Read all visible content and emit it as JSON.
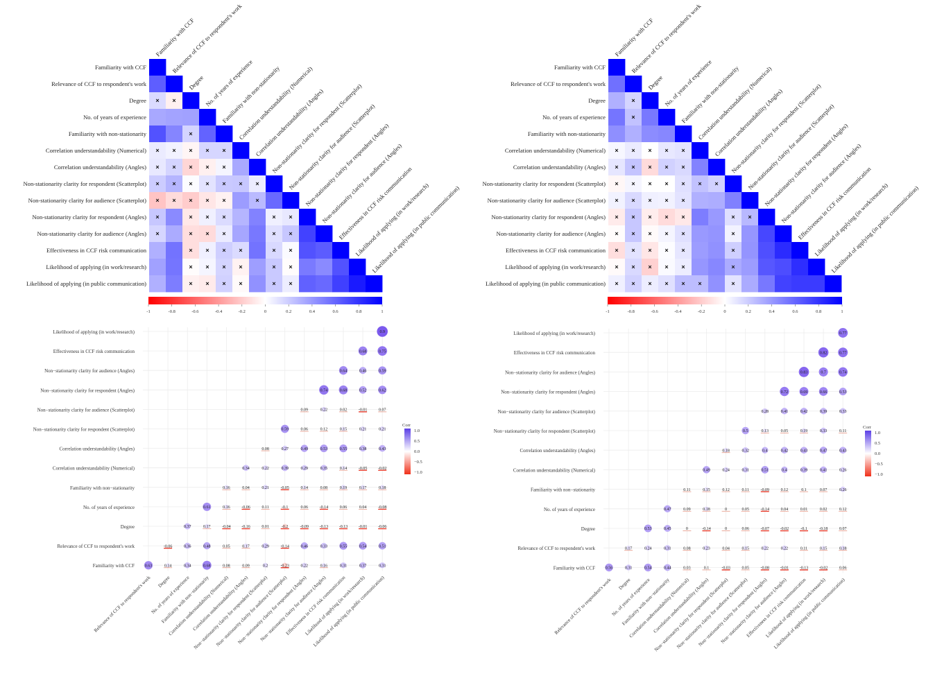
{
  "chart_data": [
    {
      "type": "heatmap",
      "panel": "top-left",
      "variables": [
        "Familiarity with CCF",
        "Relevance of CCF to respondent's work",
        "Degree",
        "No. of years of experience",
        "Familiarity with non-stationarity",
        "Correlation understandability (Numerical)",
        "Correlation understandability (Angles)",
        "Non-stationarity clarity for respondent (Scatterplot)",
        "Non-stationarity clarity for audience (Scatterplot)",
        "Non-stationarity clarity for respondent (Angles)",
        "Non-stationarity clarity for audience (Angles)",
        "Effectiveness in CCF risk communication",
        "Likelihood of applying (in work/research)",
        "Likelihood of applying (in public communication)"
      ],
      "colorbar_ticks": [
        "-1",
        "-0.8",
        "-0.6",
        "-0.4",
        "-0.2",
        "0",
        "0.2",
        "0.4",
        "0.6",
        "0.8",
        "1"
      ],
      "cross_marker": "×",
      "colors": {
        "negative": "#ff0000",
        "zero": "#ffffff",
        "positive": "#0000ff"
      }
    },
    {
      "type": "heatmap",
      "panel": "top-right",
      "variables": [
        "Familiarity with CCF",
        "Relevance of CCF to respondent's work",
        "Degree",
        "No. of years of experience",
        "Familiarity with non-stationarity",
        "Correlation understandability (Numerical)",
        "Correlation understandability (Angles)",
        "Non-stationarity clarity for respondent (Scatterplot)",
        "Non-stationarity clarity for audience (Scatterplot)",
        "Non-stationarity clarity for respondent (Angles)",
        "Non-stationarity clarity for audience (Angles)",
        "Effectiveness in CCF risk communication",
        "Likelihood of applying (in work/research)",
        "Likelihood of applying (in public communication)"
      ],
      "colorbar_ticks": [
        "-1",
        "-0.8",
        "-0.6",
        "-0.4",
        "-0.2",
        "0",
        "0.2",
        "0.4",
        "0.6",
        "0.8",
        "1"
      ],
      "cross_marker": "×",
      "colors": {
        "negative": "#ff0000",
        "zero": "#ffffff",
        "positive": "#0000ff"
      }
    },
    {
      "type": "scatter",
      "panel": "bottom-left",
      "variables": [
        "Familiarity with CCF",
        "Relevance of CCF to respondent's work",
        "Degree",
        "No. of years of experience",
        "Familiarity with non-stationarity",
        "Correlation understandability (Numerical)",
        "Correlation understandability (Angles)",
        "Non-stationarity clarity for respondent (Scatterplot)",
        "Non-stationarity clarity for audience (Scatterplot)",
        "Non-stationarity clarity for respondent (Angles)",
        "Non-stationarity clarity for audience (Angles)",
        "Effectiveness in CCF risk communication",
        "Likelihood of applying (in work/research)",
        "Likelihood of applying (in public communication)"
      ],
      "y_labels": [
        "Familiarity with CCF",
        "Relevance of CCF to respondent's work",
        "Degree",
        "No. of years of experience",
        "Familiarity with non−stationarity",
        "Correlation understandability (Numerical)",
        "Correlation understandability (Angles)",
        "Non−stationarity clarity for respondent (Scatterplot)",
        "Non−stationarity clarity for audience (Scatterplot)",
        "Non−stationarity clarity for respondent (Angles)",
        "Non−stationarity clarity for audience (Angles)",
        "Effectiveness in CCF risk communication",
        "Likelihood of applying (in work/research)"
      ],
      "x_labels": [
        "Relevance of CCF to respondent's work",
        "Degree",
        "No. of years of experience",
        "Familiarity with non−stationarity",
        "Correlation understandability (Numerical)",
        "Correlation understandability (Angles)",
        "Non−stationarity clarity for respondent (Scatterplot)",
        "Non−stationarity clarity for audience (Scatterplot)",
        "Non−stationarity clarity for respondent (Angles)",
        "Non−stationarity clarity for audience (Angles)",
        "Effectiveness in CCF risk communication",
        "Likelihood of applying (in work/research)",
        "Likelihood of applying (in public communication)"
      ],
      "legend_title": "Corr",
      "legend_ticks": [
        "1.0",
        "0.5",
        "0.0",
        "−0.5",
        "−1.0"
      ],
      "values": [
        [
          0.63,
          0.14,
          0.34,
          0.68,
          0.08,
          0.09,
          0.2,
          -0.23,
          0.22,
          0.16,
          0.31,
          0.37,
          0.31
        ],
        [
          null,
          -0.06,
          0.36,
          0.48,
          0.05,
          0.17,
          0.29,
          -0.14,
          0.46,
          0.33,
          0.55,
          0.54,
          0.51
        ],
        [
          null,
          null,
          0.37,
          0.17,
          -0.04,
          -0.16,
          0.01,
          -0.2,
          -0.09,
          -0.13,
          -0.13,
          -0.01,
          -0.06
        ],
        [
          null,
          null,
          null,
          0.61,
          0.16,
          -0.06,
          0.11,
          -0.1,
          0.06,
          -0.14,
          0.06,
          0.04,
          -0.08
        ],
        [
          null,
          null,
          null,
          null,
          0.16,
          0.04,
          0.21,
          -0.05,
          0.14,
          0.08,
          0.19,
          0.17,
          0.18
        ],
        [
          null,
          null,
          null,
          null,
          null,
          0.34,
          0.22,
          0.39,
          0.29,
          0.35,
          0.14,
          -0.05,
          -0.02
        ],
        [
          null,
          null,
          null,
          null,
          null,
          null,
          0.08,
          0.27,
          0.49,
          0.53,
          0.55,
          0.38,
          0.43
        ],
        [
          null,
          null,
          null,
          null,
          null,
          null,
          null,
          0.59,
          0.06,
          0.12,
          0.15,
          0.21,
          0.21
        ],
        [
          null,
          null,
          null,
          null,
          null,
          null,
          null,
          null,
          0.09,
          0.22,
          0.02,
          -0.01,
          0.07
        ],
        [
          null,
          null,
          null,
          null,
          null,
          null,
          null,
          null,
          null,
          0.74,
          0.68,
          0.52,
          0.62
        ],
        [
          null,
          null,
          null,
          null,
          null,
          null,
          null,
          null,
          null,
          null,
          0.64,
          0.46,
          0.59
        ],
        [
          null,
          null,
          null,
          null,
          null,
          null,
          null,
          null,
          null,
          null,
          null,
          0.68,
          0.75
        ],
        [
          null,
          null,
          null,
          null,
          null,
          null,
          null,
          null,
          null,
          null,
          null,
          null,
          0.9
        ]
      ]
    },
    {
      "type": "scatter",
      "panel": "bottom-right",
      "variables": [
        "Familiarity with CCF",
        "Relevance of CCF to respondent's work",
        "Degree",
        "No. of years of experience",
        "Familiarity with non-stationarity",
        "Correlation understandability (Numerical)",
        "Correlation understandability (Angles)",
        "Non-stationarity clarity for respondent (Scatterplot)",
        "Non-stationarity clarity for audience (Scatterplot)",
        "Non-stationarity clarity for respondent (Angles)",
        "Non-stationarity clarity for audience (Angles)",
        "Effectiveness in CCF risk communication",
        "Likelihood of applying (in work/research)",
        "Likelihood of applying (in public communication)"
      ],
      "y_labels": [
        "Familiarity with CCF",
        "Relevance of CCF to respondent's work",
        "Degree",
        "No. of years of experience",
        "Familiarity with non−stationarity",
        "Correlation understandability (Numerical)",
        "Correlation understandability (Angles)",
        "Non−stationarity clarity for respondent (Scatterplot)",
        "Non−stationarity clarity for audience (Scatterplot)",
        "Non−stationarity clarity for respondent (Angles)",
        "Non−stationarity clarity for audience (Angles)",
        "Effectiveness in CCF risk communication",
        "Likelihood of applying (in work/research)"
      ],
      "x_labels": [
        "Relevance of CCF to respondent's work",
        "Degree",
        "No. of years of experience",
        "Familiarity with non−stationarity",
        "Correlation understandability (Numerical)",
        "Correlation understandability (Angles)",
        "Non−stationarity clarity for respondent (Scatterplot)",
        "Non−stationarity clarity for audience (Scatterplot)",
        "Non−stationarity clarity for respondent (Angles)",
        "Non−stationarity clarity for audience (Angles)",
        "Effectiveness in CCF risk communication",
        "Likelihood of applying (in work/research)",
        "Likelihood of applying (in public communication)"
      ],
      "legend_title": "Corr",
      "legend_ticks": [
        "1.0",
        "0.5",
        "0.0",
        "−0.5",
        "−1.0"
      ],
      "values": [
        [
          0.56,
          0.31,
          0.54,
          0.44,
          0.03,
          0.1,
          -0.03,
          0.05,
          -0.08,
          -0.01,
          -0.13,
          -0.02,
          0.06
        ],
        [
          null,
          0.17,
          0.24,
          0.31,
          0.08,
          0.23,
          0.04,
          0.15,
          0.22,
          0.22,
          0.11,
          0.15,
          0.18
        ],
        [
          null,
          null,
          0.53,
          0.45,
          0,
          -0.14,
          0,
          0.06,
          -0.07,
          -0.02,
          -0.1,
          -0.18,
          0.07
        ],
        [
          null,
          null,
          null,
          0.47,
          0.09,
          0.18,
          0,
          0.05,
          -0.14,
          0.04,
          0.01,
          0.02,
          0.12
        ],
        [
          null,
          null,
          null,
          null,
          0.11,
          0.15,
          0.12,
          0.11,
          -0.09,
          0.12,
          0.1,
          0.07,
          0.26
        ],
        [
          null,
          null,
          null,
          null,
          null,
          0.49,
          0.24,
          0.31,
          0.51,
          0.4,
          0.39,
          0.41,
          0.26
        ],
        [
          null,
          null,
          null,
          null,
          null,
          null,
          0.18,
          0.32,
          0.4,
          0.42,
          0.43,
          0.47,
          0.43
        ],
        [
          null,
          null,
          null,
          null,
          null,
          null,
          null,
          0.5,
          0.13,
          0.05,
          0.19,
          0.33,
          0.11
        ],
        [
          null,
          null,
          null,
          null,
          null,
          null,
          null,
          null,
          0.28,
          0.41,
          0.42,
          0.39,
          0.33
        ],
        [
          null,
          null,
          null,
          null,
          null,
          null,
          null,
          null,
          null,
          0.72,
          0.69,
          0.66,
          0.53
        ],
        [
          null,
          null,
          null,
          null,
          null,
          null,
          null,
          null,
          null,
          null,
          0.83,
          0.7,
          0.74
        ],
        [
          null,
          null,
          null,
          null,
          null,
          null,
          null,
          null,
          null,
          null,
          null,
          0.82,
          0.77
        ],
        [
          null,
          null,
          null,
          null,
          null,
          null,
          null,
          null,
          null,
          null,
          null,
          null,
          0.77
        ]
      ]
    }
  ]
}
